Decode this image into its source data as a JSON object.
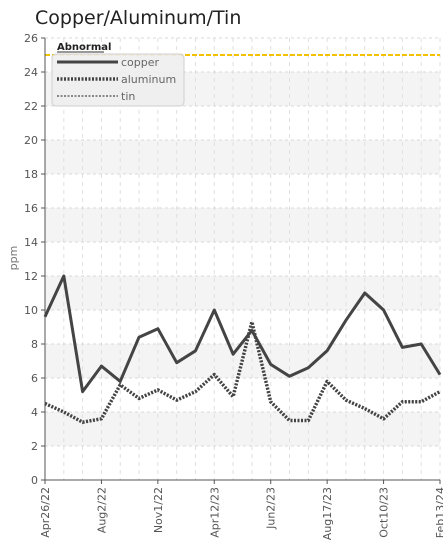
{
  "chart_data": {
    "type": "line",
    "title": "Copper/Aluminum/Tin",
    "xlabel": "",
    "ylabel": "ppm",
    "ylim": [
      0,
      26
    ],
    "yticks": [
      0,
      2,
      4,
      6,
      8,
      10,
      12,
      14,
      16,
      18,
      20,
      22,
      24,
      26
    ],
    "grid": true,
    "legend_position": "top-left",
    "x_tick_labels": [
      "Apr26/22",
      "Aug2/22",
      "Nov1/22",
      "Apr12/23",
      "Jun2/23",
      "Aug17/23",
      "Oct10/23",
      "Feb13/24"
    ],
    "threshold": {
      "label": "Abnormal",
      "value": 25,
      "color": "#f2c200"
    },
    "series": [
      {
        "name": "copper",
        "style": "solid",
        "color": "#444444",
        "values": [
          9.6,
          12.0,
          5.2,
          6.7,
          5.8,
          8.4,
          8.9,
          6.9,
          7.6,
          10.0,
          7.4,
          8.8,
          6.8,
          6.1,
          6.6,
          7.6,
          9.4,
          11.0,
          10.0,
          7.8,
          8.0,
          6.2
        ]
      },
      {
        "name": "aluminum",
        "style": "dotted",
        "color": "#444444",
        "values": [
          4.5,
          4.0,
          3.4,
          3.6,
          5.6,
          4.8,
          5.3,
          4.7,
          5.2,
          6.2,
          4.9,
          9.3,
          4.6,
          3.5,
          3.5,
          5.8,
          4.7,
          4.2,
          3.6,
          4.6,
          4.6,
          5.2
        ]
      },
      {
        "name": "tin",
        "style": "dashed-light",
        "color": "#666666",
        "values": [
          4.5,
          4.0,
          3.4,
          3.6,
          5.6,
          4.8,
          5.3,
          4.7,
          5.2,
          6.2,
          4.9,
          9.3,
          4.6,
          3.5,
          3.5,
          5.8,
          4.7,
          4.2,
          3.6,
          4.6,
          4.6,
          5.2
        ]
      }
    ]
  }
}
